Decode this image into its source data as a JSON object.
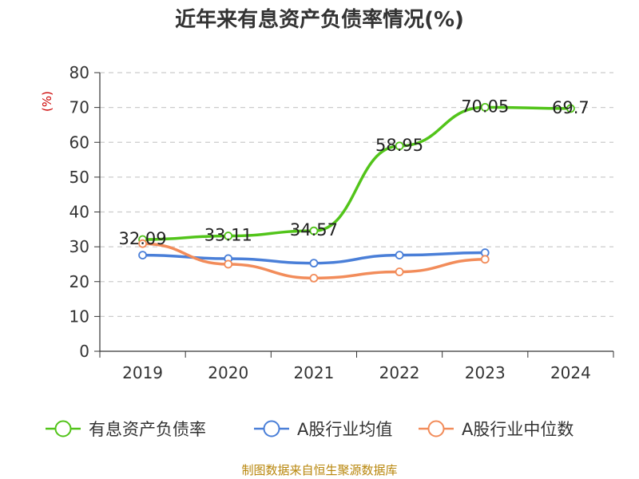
{
  "chart_data": {
    "type": "line",
    "title": "近年来有息资产负债率情况(%)",
    "ylabel": "(%)",
    "ylim": [
      0,
      80
    ],
    "y_ticks": [
      "0",
      "10",
      "20",
      "30",
      "40",
      "50",
      "60",
      "70",
      "80"
    ],
    "categories": [
      "2019",
      "2020",
      "2021",
      "2022",
      "2023",
      "2024"
    ],
    "grid": true,
    "legend_position": "bottom",
    "series": [
      {
        "name": "有息资产负债率",
        "color": "#52c41a",
        "values": [
          32.09,
          33.11,
          34.57,
          58.95,
          70.05,
          69.7
        ],
        "labels": [
          "32.09",
          "33.11",
          "34.57",
          "58.95",
          "70.05",
          "69.7"
        ]
      },
      {
        "name": "A股行业均值",
        "color": "#4a7fd8",
        "values": [
          27.6,
          26.6,
          25.3,
          27.6,
          28.3,
          null
        ]
      },
      {
        "name": "A股行业中位数",
        "color": "#f28c5a",
        "values": [
          30.9,
          25.0,
          21.0,
          22.8,
          26.4,
          null
        ]
      }
    ],
    "source": "制图数据来自恒生聚源数据库"
  }
}
